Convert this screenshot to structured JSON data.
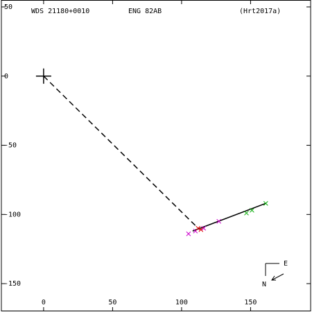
{
  "chart_data": {
    "type": "scatter",
    "title": "WDS 21180+0010",
    "subtitle": "ENG  82AB",
    "reference": "(Hrt2017a)",
    "xlim": [
      -30.6,
      193.5
    ],
    "ylim": [
      -170,
      55
    ],
    "xticks": [
      0,
      50,
      100,
      150
    ],
    "yticks": [
      50,
      0,
      -50,
      -100,
      -150
    ],
    "origin": {
      "x": 0,
      "y": 0,
      "color": "#000000"
    },
    "series": [
      {
        "color": "#cc00cc",
        "x": [
          105,
          110,
          116,
          127
        ],
        "values": [
          -114,
          -112,
          -110,
          -105
        ]
      },
      {
        "color": "#dd0000",
        "x": [
          112,
          114
        ],
        "values": [
          -110,
          -111
        ]
      },
      {
        "color": "#00aa00",
        "x": [
          147,
          151,
          161
        ],
        "values": [
          -99,
          -97,
          -92
        ]
      }
    ],
    "lines": [
      {
        "color": "#000000",
        "dashed": true,
        "x": [
          0,
          111
        ],
        "values": [
          0,
          -109
        ]
      },
      {
        "color": "#000000",
        "dashed": false,
        "x": [
          108,
          161
        ],
        "values": [
          -112,
          -92
        ]
      }
    ],
    "compass": {
      "east": "E",
      "north": "N"
    }
  }
}
